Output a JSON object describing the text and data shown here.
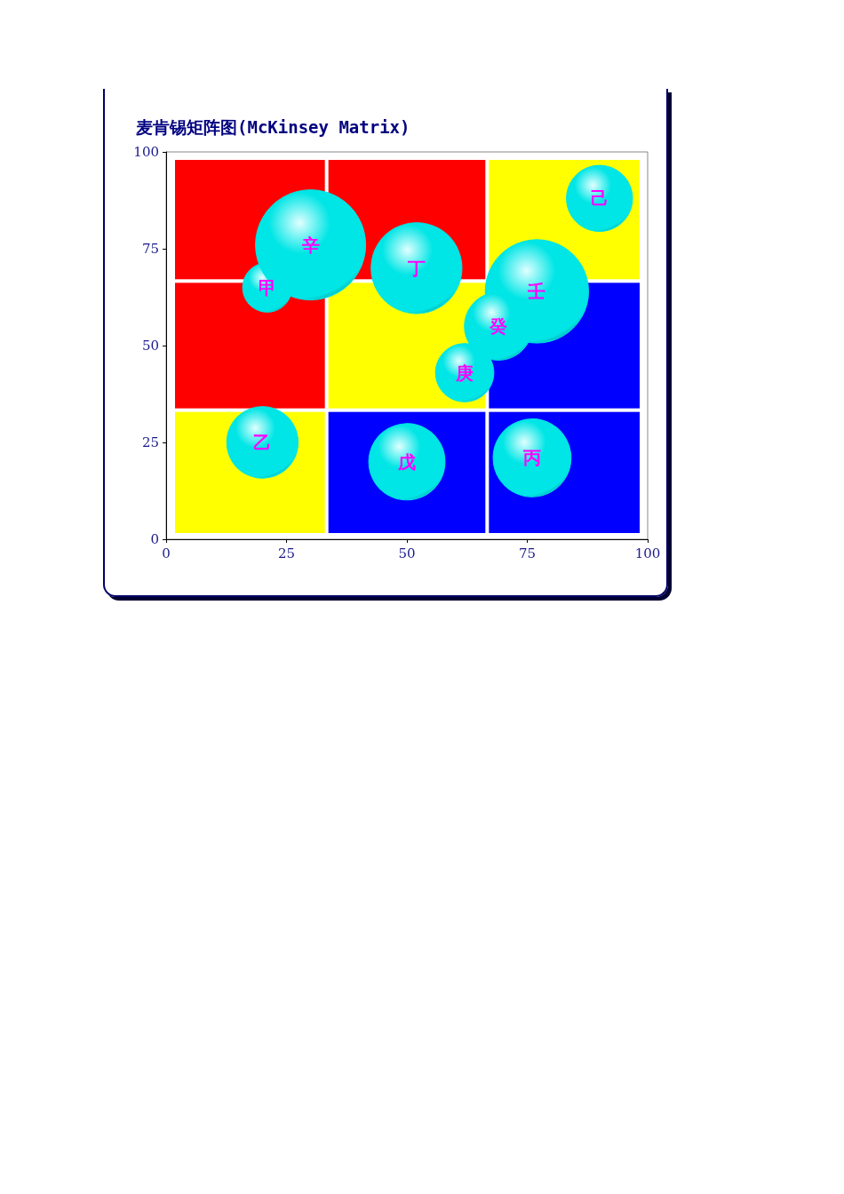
{
  "chart_data": {
    "type": "bubble",
    "title": "麦肯锡矩阵图(McKinsey Matrix)",
    "relative": false,
    "xlim": [
      0,
      100
    ],
    "xticks": [
      0,
      25,
      50,
      75,
      100
    ],
    "ylim": [
      0,
      100
    ],
    "yticks": [
      0,
      25,
      50,
      75,
      100
    ],
    "grid": false,
    "legend": false,
    "series": [
      {
        "name": "甲",
        "color": "#00e5e5",
        "x": [
          21
        ],
        "values": [
          65
        ],
        "sizes": [
          0.2
        ]
      },
      {
        "name": "辛",
        "color": "#00e5e5",
        "x": [
          30
        ],
        "values": [
          76
        ],
        "sizes": [
          1
        ]
      },
      {
        "name": "丁",
        "color": "#00e5e5",
        "x": [
          52
        ],
        "values": [
          70
        ],
        "sizes": [
          0.68
        ]
      },
      {
        "name": "壬",
        "color": "#00e5e5",
        "x": [
          77
        ],
        "values": [
          64
        ],
        "sizes": [
          0.88
        ]
      },
      {
        "name": "己",
        "color": "#00e5e5",
        "x": [
          90
        ],
        "values": [
          88
        ],
        "sizes": [
          0.36
        ]
      },
      {
        "name": "癸",
        "color": "#00e5e5",
        "x": [
          69
        ],
        "values": [
          55
        ],
        "sizes": [
          0.38
        ]
      },
      {
        "name": "庚",
        "color": "#00e5e5",
        "x": [
          62
        ],
        "values": [
          43
        ],
        "sizes": [
          0.28
        ]
      },
      {
        "name": "乙",
        "color": "#00e5e5",
        "x": [
          20
        ],
        "values": [
          25
        ],
        "sizes": [
          0.42
        ]
      },
      {
        "name": "戊",
        "color": "#00e5e5",
        "x": [
          50
        ],
        "values": [
          20
        ],
        "sizes": [
          0.48
        ]
      },
      {
        "name": "丙",
        "color": "#00e5e5",
        "x": [
          76
        ],
        "values": [
          21
        ],
        "sizes": [
          0.5
        ]
      }
    ]
  }
}
